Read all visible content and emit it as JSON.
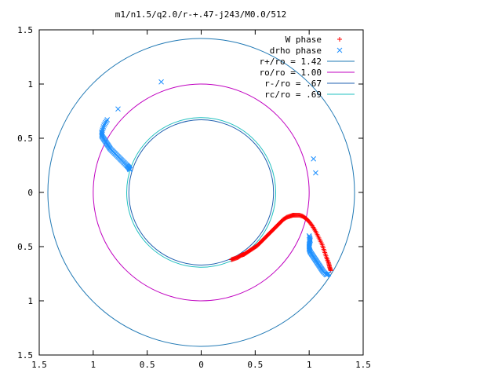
{
  "chart_data": {
    "type": "scatter",
    "title": "m1/n1.5/q2.0/r-+.47-j243/M0.0/512",
    "xlabel": "",
    "ylabel": "",
    "xlim": [
      -1.5,
      1.5
    ],
    "ylim": [
      -1.5,
      1.5
    ],
    "x_tick_labels": [
      "1.5",
      "1",
      "0.5",
      "0",
      "0.5",
      "1",
      "1.5"
    ],
    "y_tick_labels": [
      "1.5",
      "1",
      "0.5",
      "0",
      "0.5",
      "1",
      "1.5"
    ],
    "tick_values": [
      -1.5,
      -1,
      -0.5,
      0,
      0.5,
      1,
      1.5
    ],
    "grid": false,
    "legend_position": "top-right",
    "legend": [
      {
        "label": "W phase",
        "marker": "+",
        "color": "#ff0000"
      },
      {
        "label": "drho phase",
        "marker": "x",
        "color": "#1e90ff"
      },
      {
        "label": "r+/ro = 1.42",
        "marker": "line",
        "color": "#1f78b4"
      },
      {
        "label": "ro/ro = 1.00",
        "marker": "line",
        "color": "#c000c0"
      },
      {
        "label": "r-/ro = .67",
        "marker": "line",
        "color": "#2060b0"
      },
      {
        "label": "rc/ro = .69",
        "marker": "line",
        "color": "#20c0c0"
      }
    ],
    "circles": [
      {
        "name": "r+/ro",
        "radius": 1.42,
        "color": "#1f78b4"
      },
      {
        "name": "ro/ro",
        "radius": 1.0,
        "color": "#c000c0"
      },
      {
        "name": "r-/ro",
        "radius": 0.67,
        "color": "#2060b0"
      },
      {
        "name": "rc/ro",
        "radius": 0.69,
        "color": "#20c0c0"
      }
    ],
    "series": [
      {
        "name": "W phase",
        "marker": "+",
        "color": "#ff0000",
        "points": [
          [
            0.28,
            -0.62
          ],
          [
            0.31,
            -0.61
          ],
          [
            0.34,
            -0.6
          ],
          [
            0.37,
            -0.58
          ],
          [
            0.4,
            -0.57
          ],
          [
            0.43,
            -0.55
          ],
          [
            0.46,
            -0.53
          ],
          [
            0.49,
            -0.51
          ],
          [
            0.52,
            -0.49
          ],
          [
            0.55,
            -0.46
          ],
          [
            0.58,
            -0.43
          ],
          [
            0.61,
            -0.4
          ],
          [
            0.64,
            -0.37
          ],
          [
            0.67,
            -0.34
          ],
          [
            0.7,
            -0.31
          ],
          [
            0.73,
            -0.28
          ],
          [
            0.76,
            -0.25
          ],
          [
            0.79,
            -0.23
          ],
          [
            0.82,
            -0.22
          ],
          [
            0.85,
            -0.21
          ],
          [
            0.88,
            -0.21
          ],
          [
            0.91,
            -0.21
          ],
          [
            0.94,
            -0.22
          ],
          [
            0.97,
            -0.24
          ],
          [
            1.0,
            -0.27
          ],
          [
            1.03,
            -0.31
          ],
          [
            1.06,
            -0.36
          ],
          [
            1.09,
            -0.42
          ],
          [
            1.12,
            -0.48
          ],
          [
            1.14,
            -0.54
          ],
          [
            1.16,
            -0.6
          ],
          [
            1.18,
            -0.65
          ],
          [
            1.19,
            -0.69
          ],
          [
            1.2,
            -0.72
          ]
        ]
      },
      {
        "name": "drho phase",
        "marker": "x",
        "color": "#1e90ff",
        "points": [
          [
            -0.37,
            1.02
          ],
          [
            -0.77,
            0.77
          ],
          [
            -0.87,
            0.67
          ],
          [
            -0.9,
            0.62
          ],
          [
            -0.92,
            0.56
          ],
          [
            -0.92,
            0.52
          ],
          [
            -0.9,
            0.49
          ],
          [
            -0.88,
            0.46
          ],
          [
            -0.86,
            0.43
          ],
          [
            -0.84,
            0.4
          ],
          [
            -0.81,
            0.37
          ],
          [
            -0.78,
            0.34
          ],
          [
            -0.75,
            0.31
          ],
          [
            -0.72,
            0.28
          ],
          [
            -0.69,
            0.25
          ],
          [
            -0.67,
            0.23
          ],
          [
            -0.66,
            0.21
          ],
          [
            1.04,
            0.31
          ],
          [
            1.06,
            0.18
          ],
          [
            1.0,
            -0.4
          ],
          [
            1.01,
            -0.44
          ],
          [
            1.0,
            -0.48
          ],
          [
            1.0,
            -0.52
          ],
          [
            1.01,
            -0.55
          ],
          [
            1.03,
            -0.58
          ],
          [
            1.05,
            -0.61
          ],
          [
            1.07,
            -0.64
          ],
          [
            1.09,
            -0.67
          ],
          [
            1.11,
            -0.7
          ],
          [
            1.13,
            -0.73
          ],
          [
            1.16,
            -0.76
          ],
          [
            1.18,
            -0.75
          ]
        ]
      }
    ]
  }
}
